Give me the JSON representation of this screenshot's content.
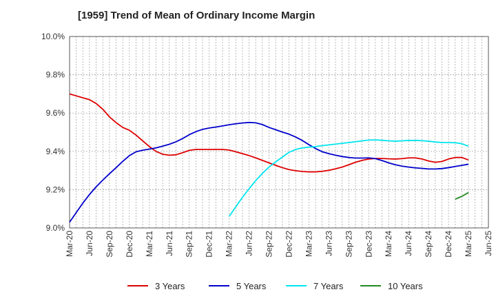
{
  "chart_data": {
    "type": "line",
    "title": "[1959]  Trend of Mean of Ordinary Income Margin",
    "xlabel": "",
    "ylabel": "",
    "x_tick_labels": [
      "Mar-20",
      "Jun-20",
      "Sep-20",
      "Dec-20",
      "Mar-21",
      "Jun-21",
      "Sep-21",
      "Dec-21",
      "Mar-22",
      "Jun-22",
      "Sep-22",
      "Dec-22",
      "Mar-23",
      "Jun-23",
      "Sep-23",
      "Dec-23",
      "Mar-24",
      "Jun-24",
      "Sep-24",
      "Dec-24",
      "Mar-25",
      "Jun-25"
    ],
    "y_tick_labels": [
      "9.0%",
      "9.2%",
      "9.4%",
      "9.6%",
      "9.8%",
      "10.0%"
    ],
    "ylim": [
      9.0,
      10.0
    ],
    "y_unit": "%",
    "grid": true,
    "legend_position": "bottom",
    "series": [
      {
        "name": "3 Years",
        "color": "#dd0000",
        "x": [
          "Mar-20",
          "Apr-20",
          "May-20",
          "Jun-20",
          "Jul-20",
          "Aug-20",
          "Sep-20",
          "Oct-20",
          "Nov-20",
          "Dec-20",
          "Jan-21",
          "Feb-21",
          "Mar-21",
          "Apr-21",
          "May-21",
          "Jun-21",
          "Jul-21",
          "Aug-21",
          "Sep-21",
          "Oct-21",
          "Nov-21",
          "Dec-21",
          "Jan-22",
          "Feb-22",
          "Mar-22",
          "Apr-22",
          "May-22",
          "Jun-22",
          "Jul-22",
          "Aug-22",
          "Sep-22",
          "Oct-22",
          "Nov-22",
          "Dec-22",
          "Jan-23",
          "Feb-23",
          "Mar-23",
          "Apr-23",
          "May-23",
          "Jun-23",
          "Jul-23",
          "Aug-23",
          "Sep-23",
          "Oct-23",
          "Nov-23",
          "Dec-23",
          "Jan-24",
          "Feb-24",
          "Mar-24",
          "Apr-24",
          "May-24",
          "Jun-24",
          "Jul-24",
          "Aug-24",
          "Sep-24",
          "Oct-24",
          "Nov-24",
          "Dec-24",
          "Jan-25",
          "Feb-25",
          "Mar-25"
        ],
        "values": [
          9.7,
          9.69,
          9.68,
          9.67,
          9.65,
          9.62,
          9.58,
          9.55,
          9.525,
          9.51,
          9.485,
          9.455,
          9.425,
          9.4,
          9.385,
          9.38,
          9.382,
          9.393,
          9.405,
          9.41,
          9.41,
          9.41,
          9.41,
          9.41,
          9.407,
          9.398,
          9.388,
          9.378,
          9.366,
          9.353,
          9.34,
          9.327,
          9.315,
          9.305,
          9.299,
          9.295,
          9.293,
          9.293,
          9.296,
          9.301,
          9.309,
          9.318,
          9.33,
          9.343,
          9.353,
          9.36,
          9.363,
          9.363,
          9.361,
          9.36,
          9.362,
          9.366,
          9.366,
          9.36,
          9.35,
          9.343,
          9.347,
          9.36,
          9.368,
          9.368,
          9.355
        ]
      },
      {
        "name": "5 Years",
        "color": "#0000cc",
        "x": [
          "Mar-20",
          "Apr-20",
          "May-20",
          "Jun-20",
          "Jul-20",
          "Aug-20",
          "Sep-20",
          "Oct-20",
          "Nov-20",
          "Dec-20",
          "Jan-21",
          "Feb-21",
          "Mar-21",
          "Apr-21",
          "May-21",
          "Jun-21",
          "Jul-21",
          "Aug-21",
          "Sep-21",
          "Oct-21",
          "Nov-21",
          "Dec-21",
          "Jan-22",
          "Feb-22",
          "Mar-22",
          "Apr-22",
          "May-22",
          "Jun-22",
          "Jul-22",
          "Aug-22",
          "Sep-22",
          "Oct-22",
          "Nov-22",
          "Dec-22",
          "Jan-23",
          "Feb-23",
          "Mar-23",
          "Apr-23",
          "May-23",
          "Jun-23",
          "Jul-23",
          "Aug-23",
          "Sep-23",
          "Oct-23",
          "Nov-23",
          "Dec-23",
          "Jan-24",
          "Feb-24",
          "Mar-24",
          "Apr-24",
          "May-24",
          "Jun-24",
          "Jul-24",
          "Aug-24",
          "Sep-24",
          "Oct-24",
          "Nov-24",
          "Dec-24",
          "Jan-25",
          "Feb-25",
          "Mar-25"
        ],
        "values": [
          9.03,
          9.08,
          9.13,
          9.175,
          9.215,
          9.25,
          9.283,
          9.315,
          9.348,
          9.378,
          9.398,
          9.406,
          9.412,
          9.418,
          9.427,
          9.437,
          9.45,
          9.467,
          9.487,
          9.503,
          9.515,
          9.522,
          9.527,
          9.533,
          9.539,
          9.544,
          9.548,
          9.551,
          9.549,
          9.54,
          9.525,
          9.513,
          9.501,
          9.49,
          9.475,
          9.457,
          9.435,
          9.415,
          9.398,
          9.388,
          9.38,
          9.373,
          9.368,
          9.365,
          9.365,
          9.366,
          9.362,
          9.352,
          9.34,
          9.33,
          9.323,
          9.318,
          9.314,
          9.311,
          9.308,
          9.308,
          9.31,
          9.315,
          9.321,
          9.327,
          9.333
        ]
      },
      {
        "name": "7 Years",
        "color": "#00e5ee",
        "x": [
          "Mar-22",
          "Apr-22",
          "May-22",
          "Jun-22",
          "Jul-22",
          "Aug-22",
          "Sep-22",
          "Oct-22",
          "Nov-22",
          "Dec-22",
          "Jan-23",
          "Feb-23",
          "Mar-23",
          "Apr-23",
          "May-23",
          "Jun-23",
          "Jul-23",
          "Aug-23",
          "Sep-23",
          "Oct-23",
          "Nov-23",
          "Dec-23",
          "Jan-24",
          "Feb-24",
          "Mar-24",
          "Apr-24",
          "May-24",
          "Jun-24",
          "Jul-24",
          "Aug-24",
          "Sep-24",
          "Oct-24",
          "Nov-24",
          "Dec-24",
          "Jan-25",
          "Feb-25",
          "Mar-25"
        ],
        "values": [
          9.06,
          9.11,
          9.16,
          9.205,
          9.247,
          9.285,
          9.318,
          9.345,
          9.37,
          9.395,
          9.41,
          9.418,
          9.422,
          9.425,
          9.43,
          9.434,
          9.438,
          9.442,
          9.446,
          9.45,
          9.455,
          9.459,
          9.46,
          9.458,
          9.455,
          9.453,
          9.455,
          9.457,
          9.457,
          9.456,
          9.453,
          9.449,
          9.446,
          9.446,
          9.445,
          9.44,
          9.427
        ]
      },
      {
        "name": "10 Years",
        "color": "#228822",
        "x": [
          "Jan-25",
          "Feb-25",
          "Mar-25"
        ],
        "values": [
          9.15,
          9.165,
          9.185
        ]
      }
    ]
  }
}
